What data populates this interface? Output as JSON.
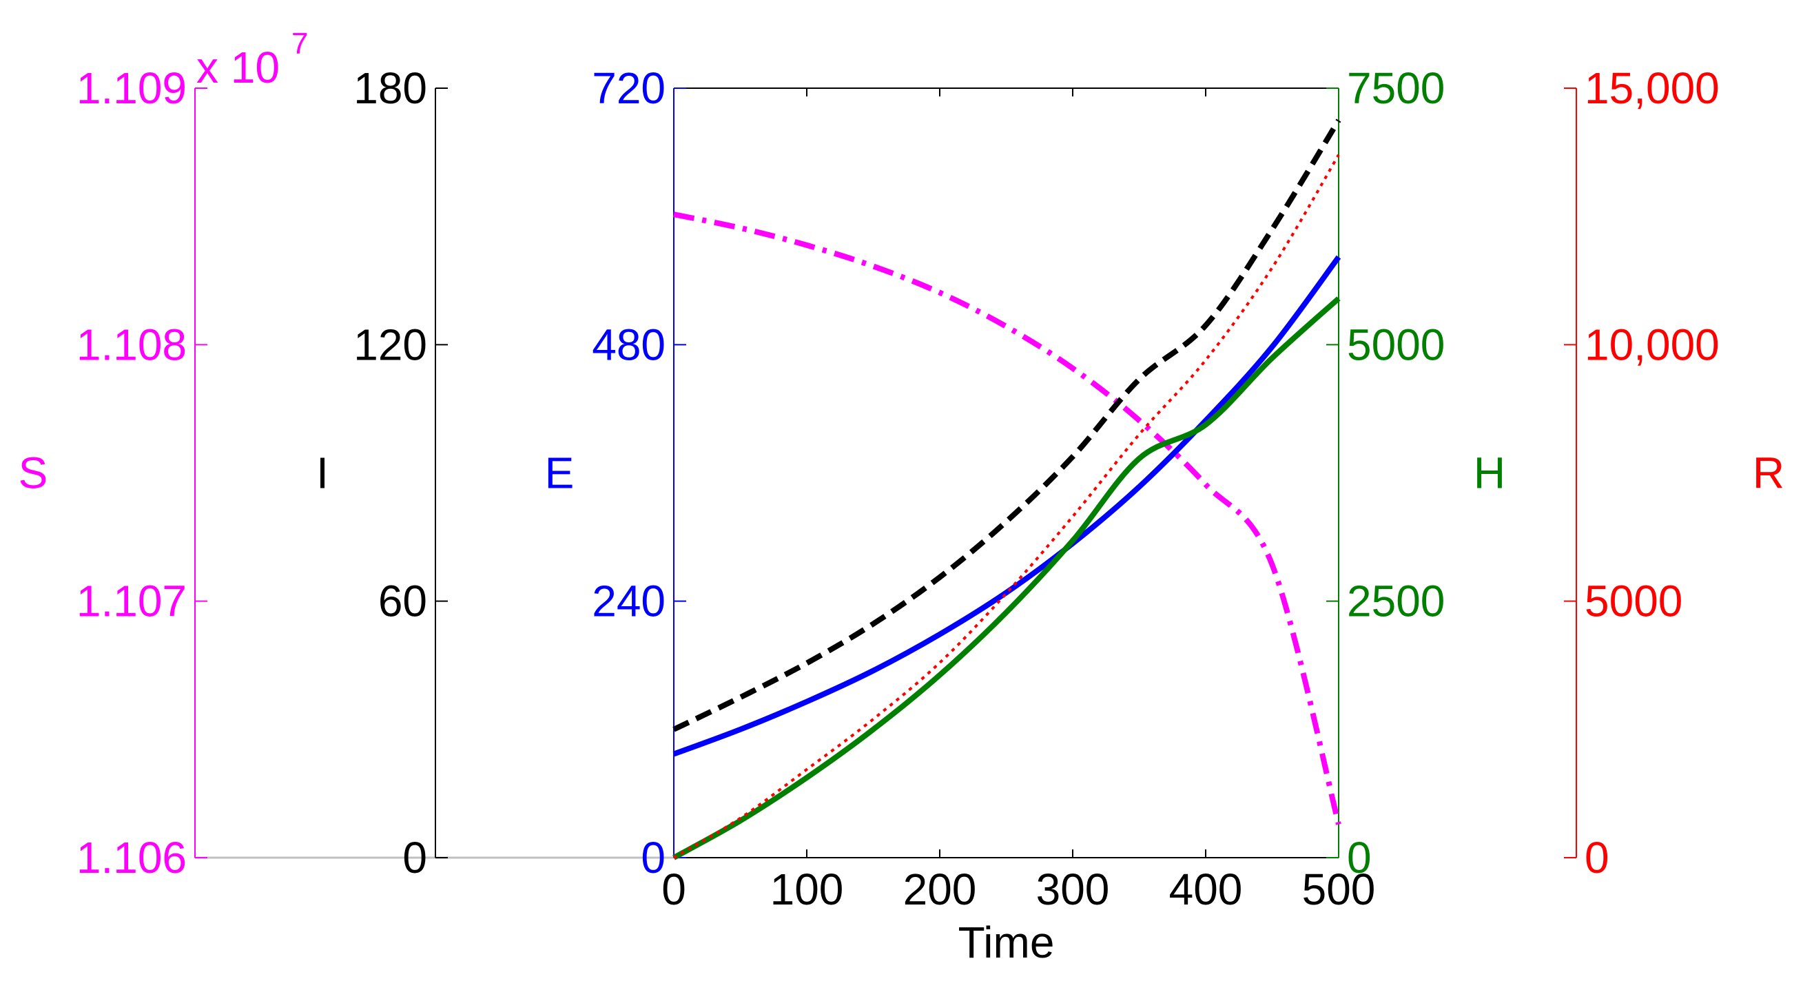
{
  "chart_data": {
    "type": "line",
    "xlabel": "Time",
    "x_ticks": [
      0,
      100,
      200,
      300,
      400,
      500
    ],
    "xlim": [
      0,
      500
    ],
    "grid": false,
    "axes": [
      {
        "key": "S",
        "label": "S",
        "color": "#ff00ff",
        "lim": [
          11060000,
          11090000
        ],
        "tick_labels": [
          "1.106",
          "1.107",
          "1.108",
          "1.109"
        ],
        "exponent_label": "x 10",
        "exponent": "7"
      },
      {
        "key": "I",
        "label": "I",
        "color": "#000000",
        "lim": [
          0,
          180
        ],
        "tick_labels": [
          "0",
          "60",
          "120",
          "180"
        ]
      },
      {
        "key": "E",
        "label": "E",
        "color": "#0000ff",
        "lim": [
          0,
          720
        ],
        "tick_labels": [
          "0",
          "240",
          "480",
          "720"
        ]
      },
      {
        "key": "H",
        "label": "H",
        "color": "#007f00",
        "lim": [
          0,
          7500
        ],
        "tick_labels": [
          "0",
          "2500",
          "5000",
          "7500"
        ]
      },
      {
        "key": "R",
        "label": "R",
        "color": "#ff0000",
        "lim": [
          0,
          15000
        ],
        "tick_labels": [
          "0",
          "5000",
          "10,000",
          "15,000"
        ]
      }
    ],
    "series": [
      {
        "axis": "S",
        "style": "dashdot",
        "color": "#ff00ff",
        "x": [
          0,
          50,
          100,
          150,
          200,
          250,
          300,
          350,
          400,
          450,
          500
        ],
        "y": [
          11085080,
          11084550,
          11083880,
          11083060,
          11082030,
          11080710,
          11079080,
          11077050,
          11074550,
          11071420,
          11061300
        ]
      },
      {
        "axis": "I",
        "style": "dashed",
        "color": "#000000",
        "x": [
          0,
          50,
          100,
          150,
          200,
          250,
          300,
          350,
          400,
          450,
          500
        ],
        "y": [
          30,
          37.5,
          45.5,
          54.7,
          65.6,
          78.6,
          93.8,
          111.9,
          124.5,
          147,
          172.5
        ]
      },
      {
        "axis": "E",
        "style": "solid",
        "color": "#0000ff",
        "x": [
          0,
          50,
          100,
          150,
          200,
          250,
          300,
          350,
          400,
          450,
          500
        ],
        "y": [
          97,
          120,
          146,
          175,
          209,
          248,
          294,
          347,
          409,
          478,
          562
        ]
      },
      {
        "axis": "H",
        "style": "solid",
        "color": "#007f00",
        "x": [
          0,
          50,
          100,
          150,
          200,
          250,
          300,
          350,
          400,
          450,
          500
        ],
        "y": [
          0,
          360,
          780,
          1250,
          1780,
          2390,
          3090,
          3890,
          4220,
          4870,
          5450
        ]
      },
      {
        "axis": "R",
        "style": "dotted",
        "color": "#ff0000",
        "x": [
          0,
          50,
          100,
          150,
          200,
          250,
          300,
          350,
          400,
          450,
          500
        ],
        "y": [
          0,
          770,
          1720,
          2700,
          3800,
          5150,
          6650,
          8250,
          9700,
          11500,
          13700
        ]
      }
    ]
  }
}
